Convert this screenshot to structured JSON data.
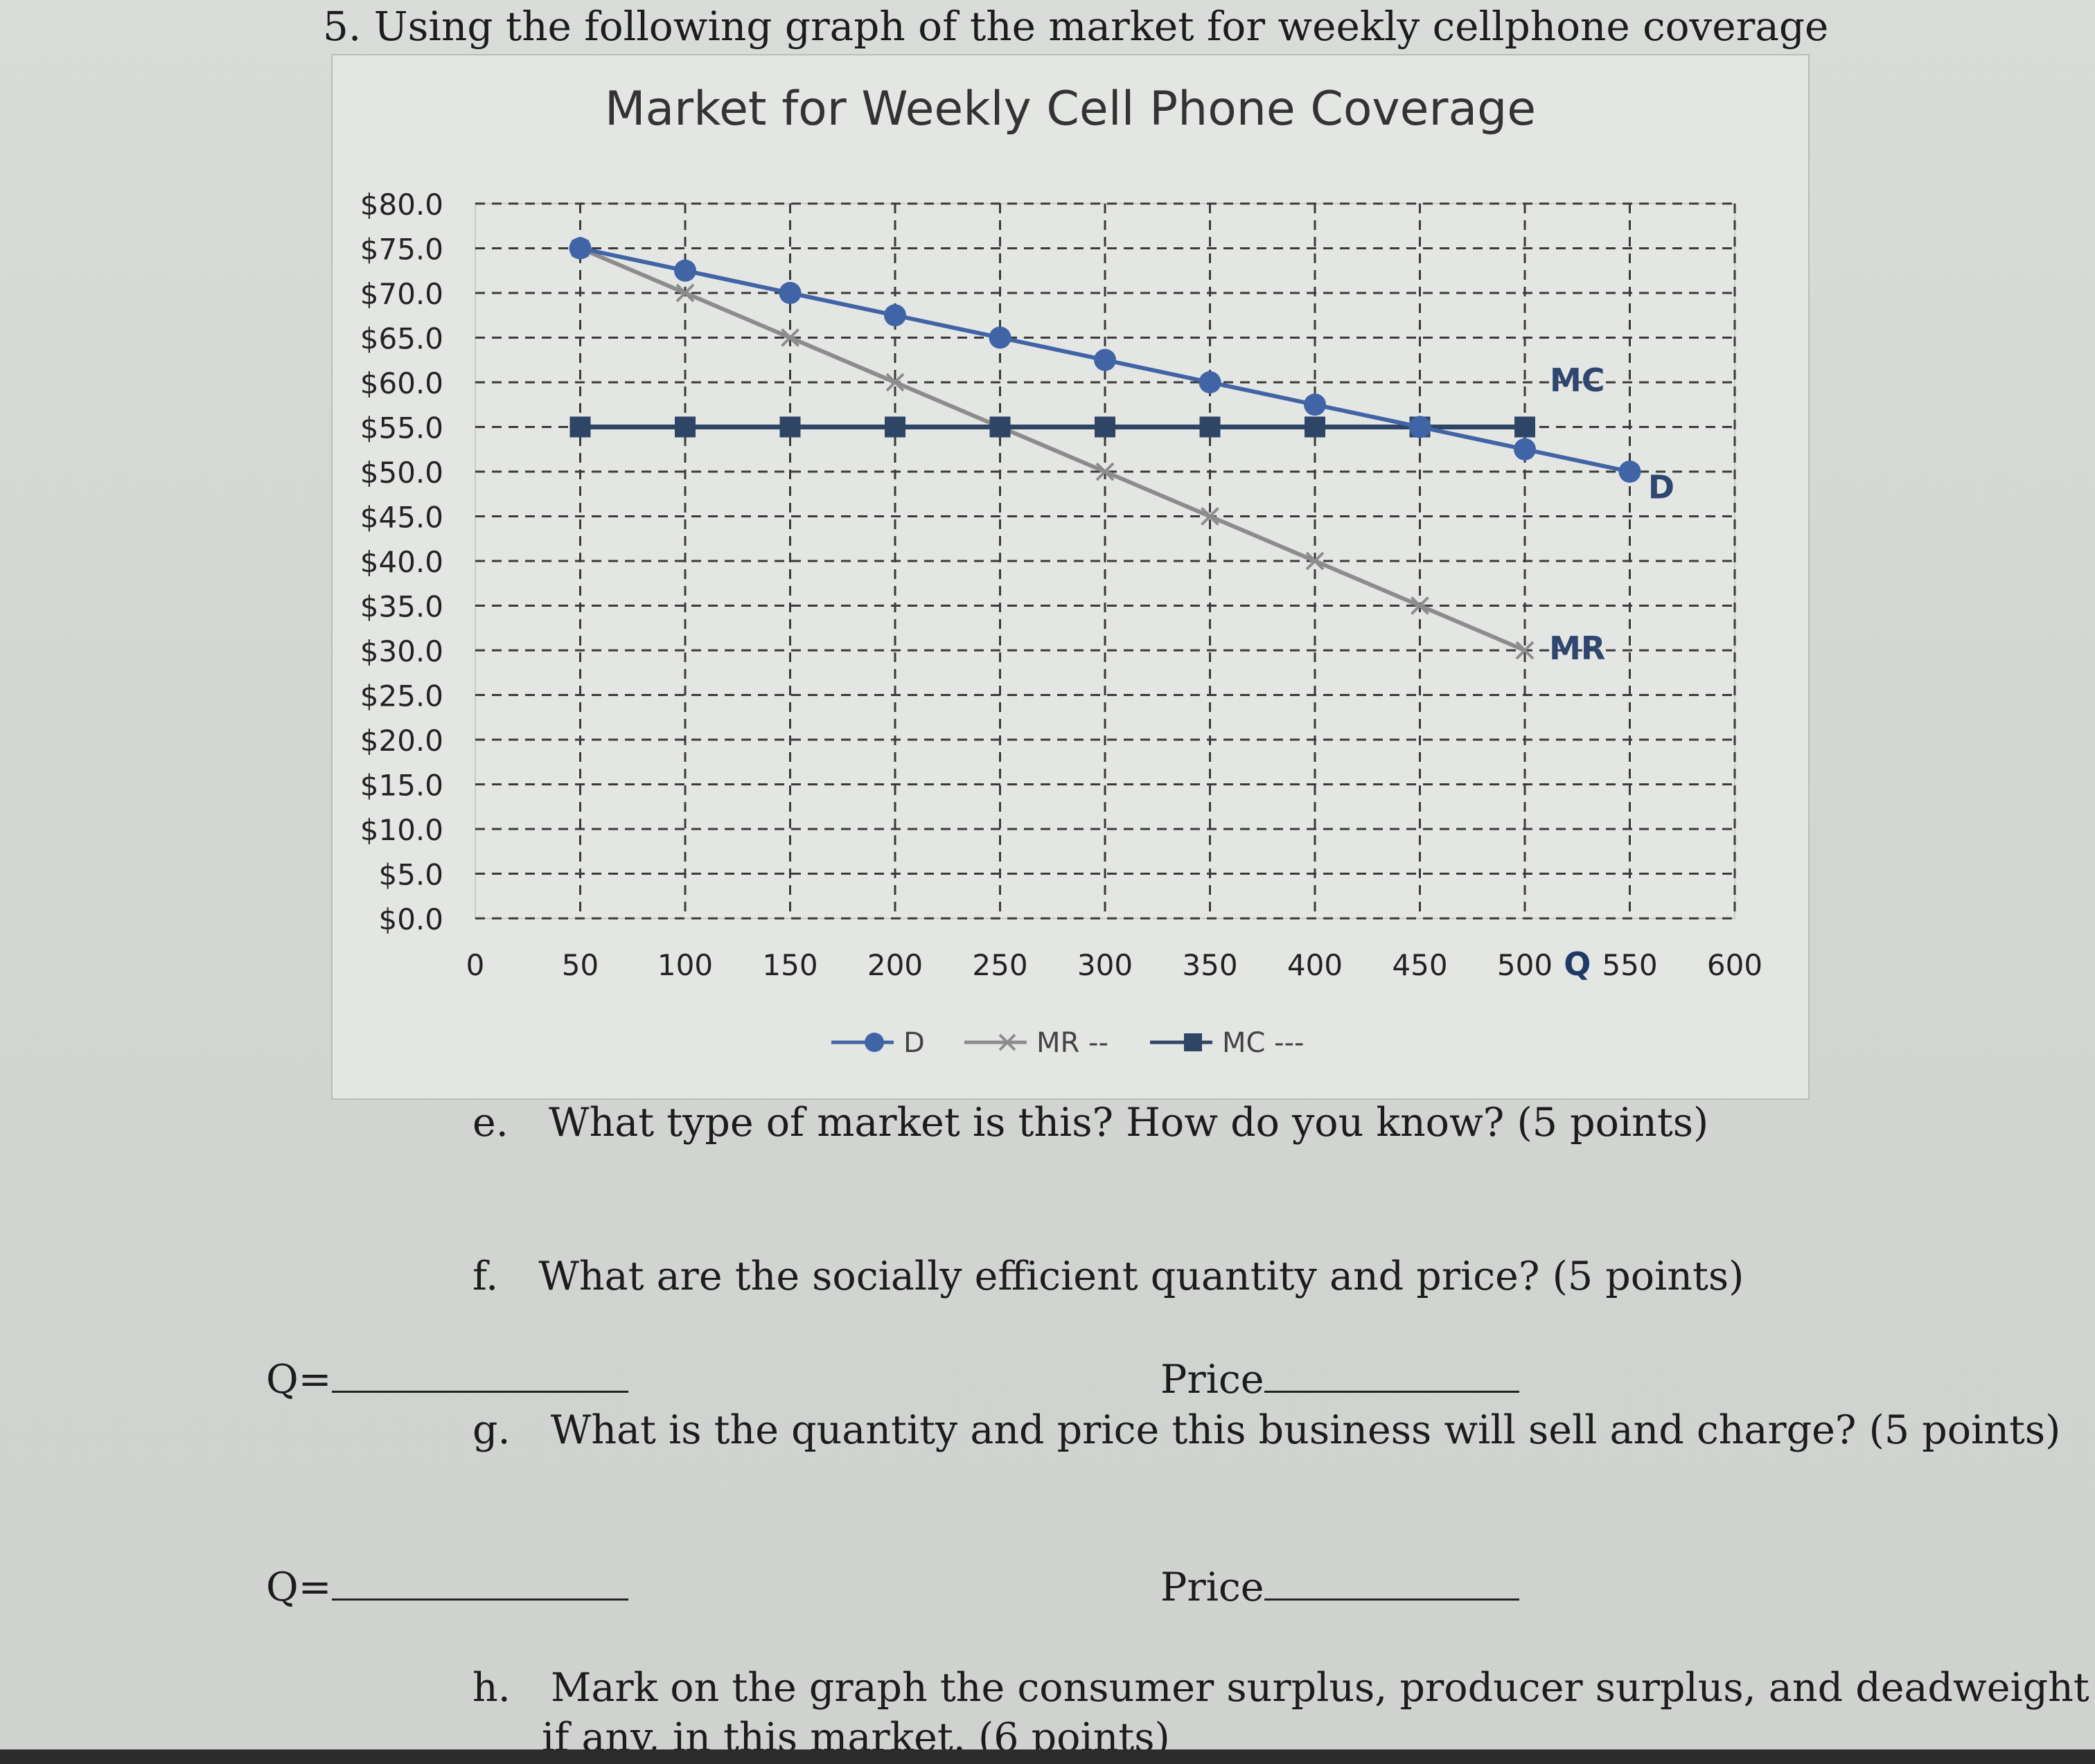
{
  "question": {
    "number_title": "5. Using the following graph of the market for weekly cellphone coverage",
    "parts": [
      {
        "letter": "e.",
        "text": "What type of market is this? How do you know? (5 points)"
      },
      {
        "letter": "f.",
        "text": "What are the socially efficient quantity and price? (5 points)"
      },
      {
        "letter": "g.",
        "text": "What is the quantity and price this business will sell and charge? (5 points)"
      },
      {
        "letter": "h.",
        "text": "Mark on the graph the consumer surplus, producer surplus, and deadweight loss,",
        "text2": "if any, in this market. (6 points)"
      }
    ],
    "answer_rows": [
      {
        "q_label": "Q=",
        "price_label": "Price"
      },
      {
        "q_label": "Q=",
        "price_label": "Price"
      }
    ]
  },
  "chart_data": {
    "type": "line",
    "title": "Market for Weekly Cell Phone Coverage",
    "xlabel": "Q",
    "ylabel": "",
    "xlim": [
      0,
      600
    ],
    "ylim": [
      0,
      80
    ],
    "x_ticks": [
      "0",
      "50",
      "100",
      "150",
      "200",
      "250",
      "300",
      "350",
      "400",
      "450",
      "500",
      "550",
      "600"
    ],
    "y_ticks": [
      "$0.0",
      "$5.0",
      "$10.0",
      "$15.0",
      "$20.0",
      "$25.0",
      "$30.0",
      "$35.0",
      "$40.0",
      "$45.0",
      "$50.0",
      "$55.0",
      "$60.0",
      "$65.0",
      "$70.0",
      "$75.0",
      "$80.0"
    ],
    "grid": true,
    "legend_position": "bottom",
    "series": [
      {
        "name": "D",
        "legend_label": "D",
        "color": "#4064a6",
        "marker": "circle",
        "x": [
          50,
          100,
          150,
          200,
          250,
          300,
          350,
          400,
          450,
          500,
          550
        ],
        "y": [
          75,
          72.5,
          70,
          67.5,
          65,
          62.5,
          60,
          57.5,
          55,
          52.5,
          50
        ]
      },
      {
        "name": "MR",
        "legend_label": "MR --",
        "color": "#8c8c8c",
        "marker": "x",
        "x": [
          50,
          100,
          150,
          200,
          250,
          300,
          350,
          400,
          450,
          500
        ],
        "y": [
          75,
          70,
          65,
          60,
          55,
          50,
          45,
          40,
          35,
          30
        ]
      },
      {
        "name": "MC",
        "legend_label": "MC ---",
        "color": "#2f4565",
        "marker": "square",
        "x": [
          50,
          100,
          150,
          200,
          250,
          300,
          350,
          400,
          450,
          500
        ],
        "y": [
          55,
          55,
          55,
          55,
          55,
          55,
          55,
          55,
          55,
          55
        ]
      }
    ],
    "annotations": [
      {
        "text": "MC",
        "x": 525,
        "y": 59
      },
      {
        "text": "D",
        "x": 565,
        "y": 47
      },
      {
        "text": "MR",
        "x": 525,
        "y": 29
      }
    ]
  }
}
